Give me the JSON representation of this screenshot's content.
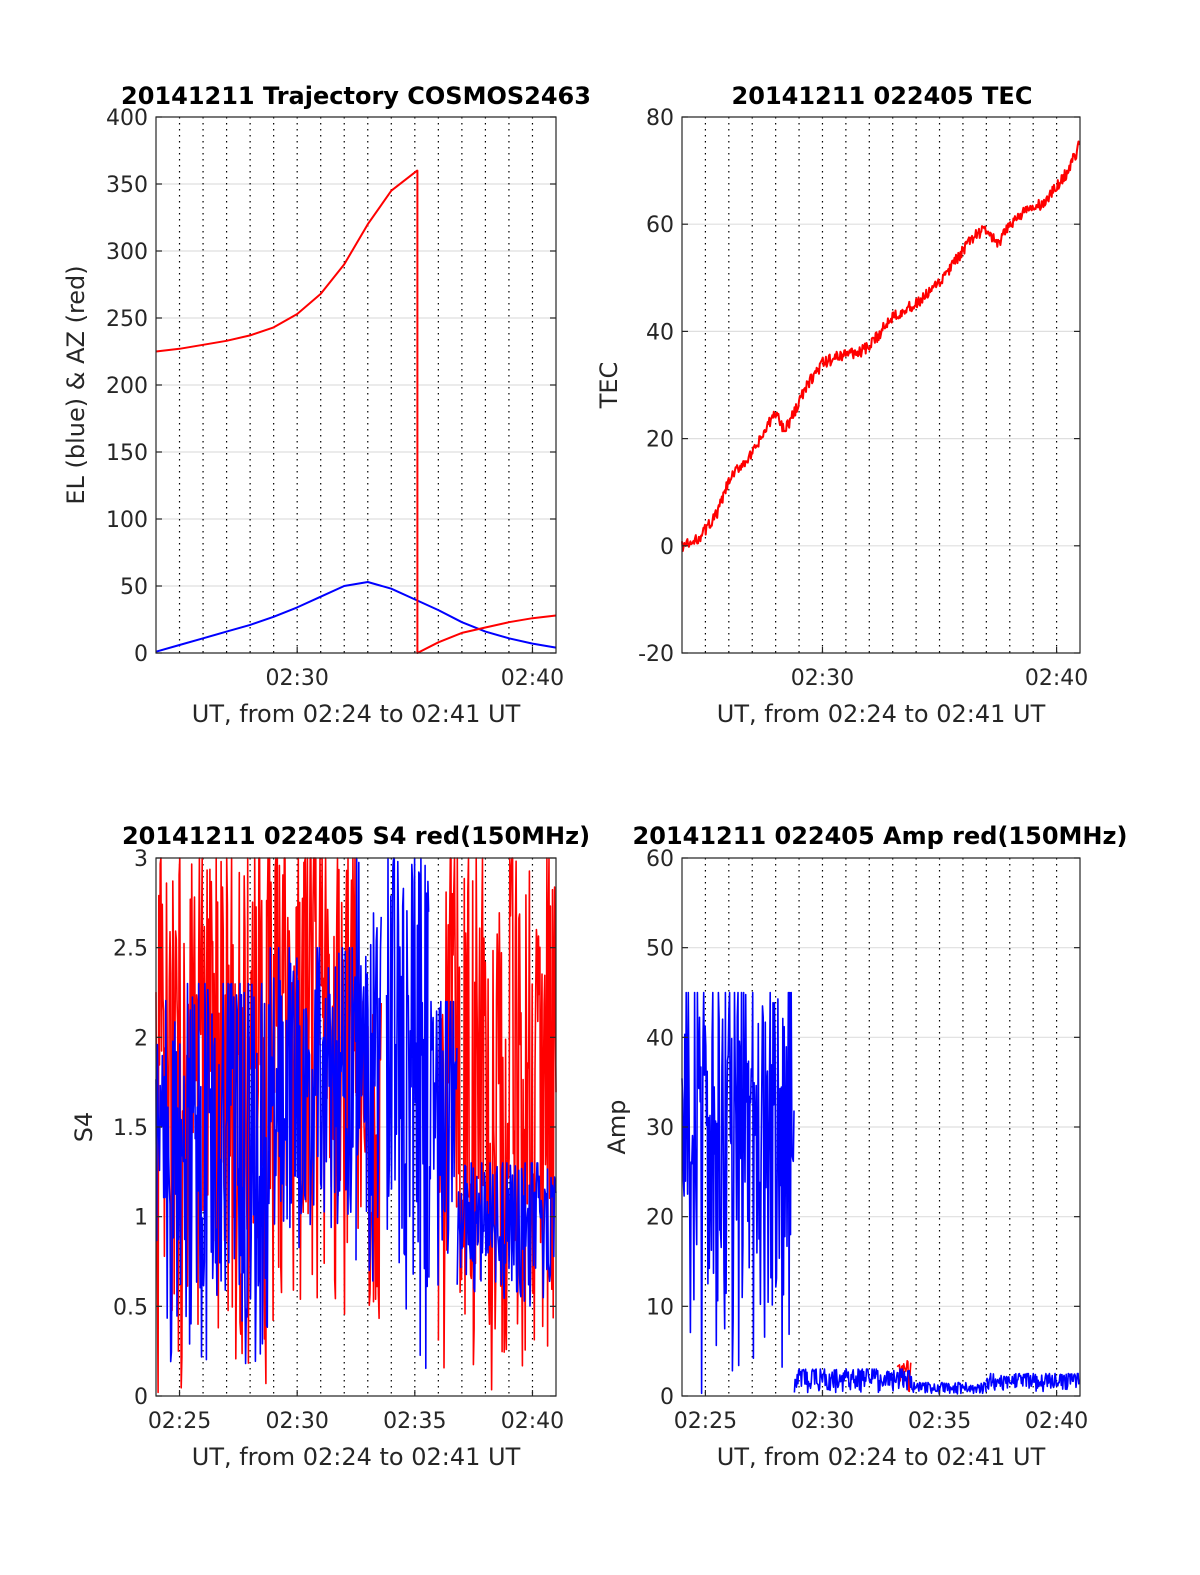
{
  "figure": {
    "colors": {
      "el": "#0000ff",
      "az": "#ff0000",
      "tec": "#ff0000",
      "s4_red": "#ff0000",
      "s4_blue": "#0000ff",
      "amp_red": "#ff0000",
      "amp_blue": "#0000ff"
    }
  },
  "chart_data": [
    {
      "id": "traj",
      "type": "line",
      "title": "20141211 Trajectory COSMOS2463",
      "xlabel": "UT, from 02:24 to 02:41 UT",
      "ylabel": "EL (blue) & AZ (red)",
      "xlim_minutes": [
        24,
        41
      ],
      "ylim": [
        0,
        400
      ],
      "yticks": [
        0,
        50,
        100,
        150,
        200,
        250,
        300,
        350,
        400
      ],
      "xticks": [
        {
          "m": 30,
          "label": "02:30"
        },
        {
          "m": 40,
          "label": "02:40"
        }
      ],
      "grid": "on",
      "series": [
        {
          "color": "#0000ff",
          "x": [
            24.0,
            25,
            26,
            27,
            28,
            29,
            30,
            31,
            32,
            33.0,
            34,
            35,
            36,
            37,
            38,
            39,
            40,
            41.0
          ],
          "y": [
            1,
            6,
            11,
            16,
            21,
            27,
            34,
            42,
            50,
            53,
            48,
            40,
            32,
            23,
            16,
            11,
            7,
            4
          ]
        },
        {
          "color": "#ff0000",
          "x": [
            24.0,
            25,
            26,
            27,
            28,
            29,
            30,
            31,
            32,
            33,
            34,
            35.1,
            35.11,
            35.11,
            36,
            37,
            38,
            39,
            40,
            41.0
          ],
          "y": [
            225,
            227,
            230,
            233,
            237,
            243,
            253,
            268,
            290,
            320,
            345,
            360,
            360,
            0,
            8,
            15,
            19,
            23,
            26,
            28
          ]
        }
      ]
    },
    {
      "id": "tec",
      "type": "line",
      "title": "20141211 022405 TEC",
      "xlabel": "UT, from 02:24 to 02:41 UT",
      "ylabel": "TEC",
      "xlim_minutes": [
        24,
        41
      ],
      "ylim": [
        -20,
        80
      ],
      "yticks": [
        -20,
        0,
        20,
        40,
        60,
        80
      ],
      "xticks": [
        {
          "m": 30,
          "label": "02:30"
        },
        {
          "m": 40,
          "label": "02:40"
        }
      ],
      "grid": "on",
      "series": [
        {
          "color": "#ff0000",
          "x": [
            24.0,
            24.5,
            25.0,
            25.5,
            26.0,
            26.5,
            27.0,
            27.5,
            28.0,
            28.3,
            28.6,
            29.0,
            29.5,
            30.0,
            30.5,
            31.0,
            31.5,
            32.0,
            32.5,
            33.0,
            33.5,
            34.0,
            34.5,
            35.0,
            35.5,
            36.0,
            36.5,
            37.0,
            37.5,
            38.0,
            38.5,
            39.0,
            39.5,
            40.0,
            40.5,
            41.0
          ],
          "y": [
            0,
            0.5,
            3,
            6,
            12,
            15,
            17,
            21,
            25,
            22,
            23,
            27,
            31,
            34,
            35,
            36,
            36,
            37,
            40,
            43,
            44,
            45,
            47,
            49,
            52,
            55,
            58,
            59,
            56,
            60,
            62,
            63,
            64,
            67,
            70,
            75
          ]
        }
      ]
    },
    {
      "id": "s4",
      "type": "line",
      "title": "20141211 022405 S4 red(150MHz)",
      "xlabel": "UT, from 02:24 to 02:41 UT",
      "ylabel": "S4",
      "xlim_minutes": [
        24,
        41
      ],
      "ylim": [
        0,
        3
      ],
      "yticks": [
        0,
        0.5,
        1,
        1.5,
        2,
        2.5,
        3
      ],
      "xticks": [
        {
          "m": 25,
          "label": "02:25"
        },
        {
          "m": 30,
          "label": "02:30"
        },
        {
          "m": 35,
          "label": "02:35"
        },
        {
          "m": 40,
          "label": "02:40"
        }
      ],
      "grid": "on",
      "series": [
        {
          "color": "#ff0000",
          "style": "dense-noise",
          "segments": [
            {
              "x": [
                24.0,
                28.8
              ],
              "lo": 0,
              "hi": 3
            },
            {
              "x": [
                28.8,
                32.5
              ],
              "lo": 0.4,
              "hi": 3
            },
            {
              "x": [
                32.5,
                33.6
              ],
              "lo": 0.4,
              "hi": 2.2
            },
            {
              "x": [
                36.0,
                41.0
              ],
              "lo": 0,
              "hi": 3
            }
          ]
        },
        {
          "color": "#0000ff",
          "style": "dense-noise",
          "segments": [
            {
              "x": [
                24.0,
                28.8
              ],
              "lo": 0.12,
              "hi": 2.3
            },
            {
              "x": [
                28.8,
                32.5
              ],
              "lo": 0.8,
              "hi": 2.5
            },
            {
              "x": [
                32.5,
                33.6
              ],
              "lo": 0.5,
              "hi": 3
            },
            {
              "x": [
                33.8,
                35.6
              ],
              "lo": 0,
              "hi": 3
            },
            {
              "x": [
                35.6,
                36.8
              ],
              "lo": 0.6,
              "hi": 2.2
            },
            {
              "x": [
                36.8,
                41.0
              ],
              "lo": 0.5,
              "hi": 1.3
            }
          ]
        }
      ]
    },
    {
      "id": "amp",
      "type": "line",
      "title": "20141211 022405 Amp red(150MHz)",
      "xlabel": "UT, from 02:24 to 02:41 UT",
      "ylabel": "Amp",
      "xlim_minutes": [
        24,
        41
      ],
      "ylim": [
        0,
        60
      ],
      "yticks": [
        0,
        10,
        20,
        30,
        40,
        50,
        60
      ],
      "xticks": [
        {
          "m": 25,
          "label": "02:25"
        },
        {
          "m": 30,
          "label": "02:30"
        },
        {
          "m": 35,
          "label": "02:35"
        },
        {
          "m": 40,
          "label": "02:40"
        }
      ],
      "grid": "on",
      "series": [
        {
          "color": "#ff0000",
          "style": "dense-noise",
          "segments": [
            {
              "x": [
                33.2,
                33.8
              ],
              "lo": 0.5,
              "hi": 4
            }
          ]
        },
        {
          "color": "#0000ff",
          "style": "dense-noise",
          "segments": [
            {
              "x": [
                24.0,
                28.8
              ],
              "lo": 0,
              "hi": 45
            },
            {
              "x": [
                28.8,
                34.0
              ],
              "lo": 0.3,
              "hi": 3
            },
            {
              "x": [
                34.0,
                37.0
              ],
              "lo": 0.2,
              "hi": 1.5
            },
            {
              "x": [
                37.0,
                41.0
              ],
              "lo": 0.5,
              "hi": 2.5
            }
          ]
        }
      ]
    }
  ]
}
